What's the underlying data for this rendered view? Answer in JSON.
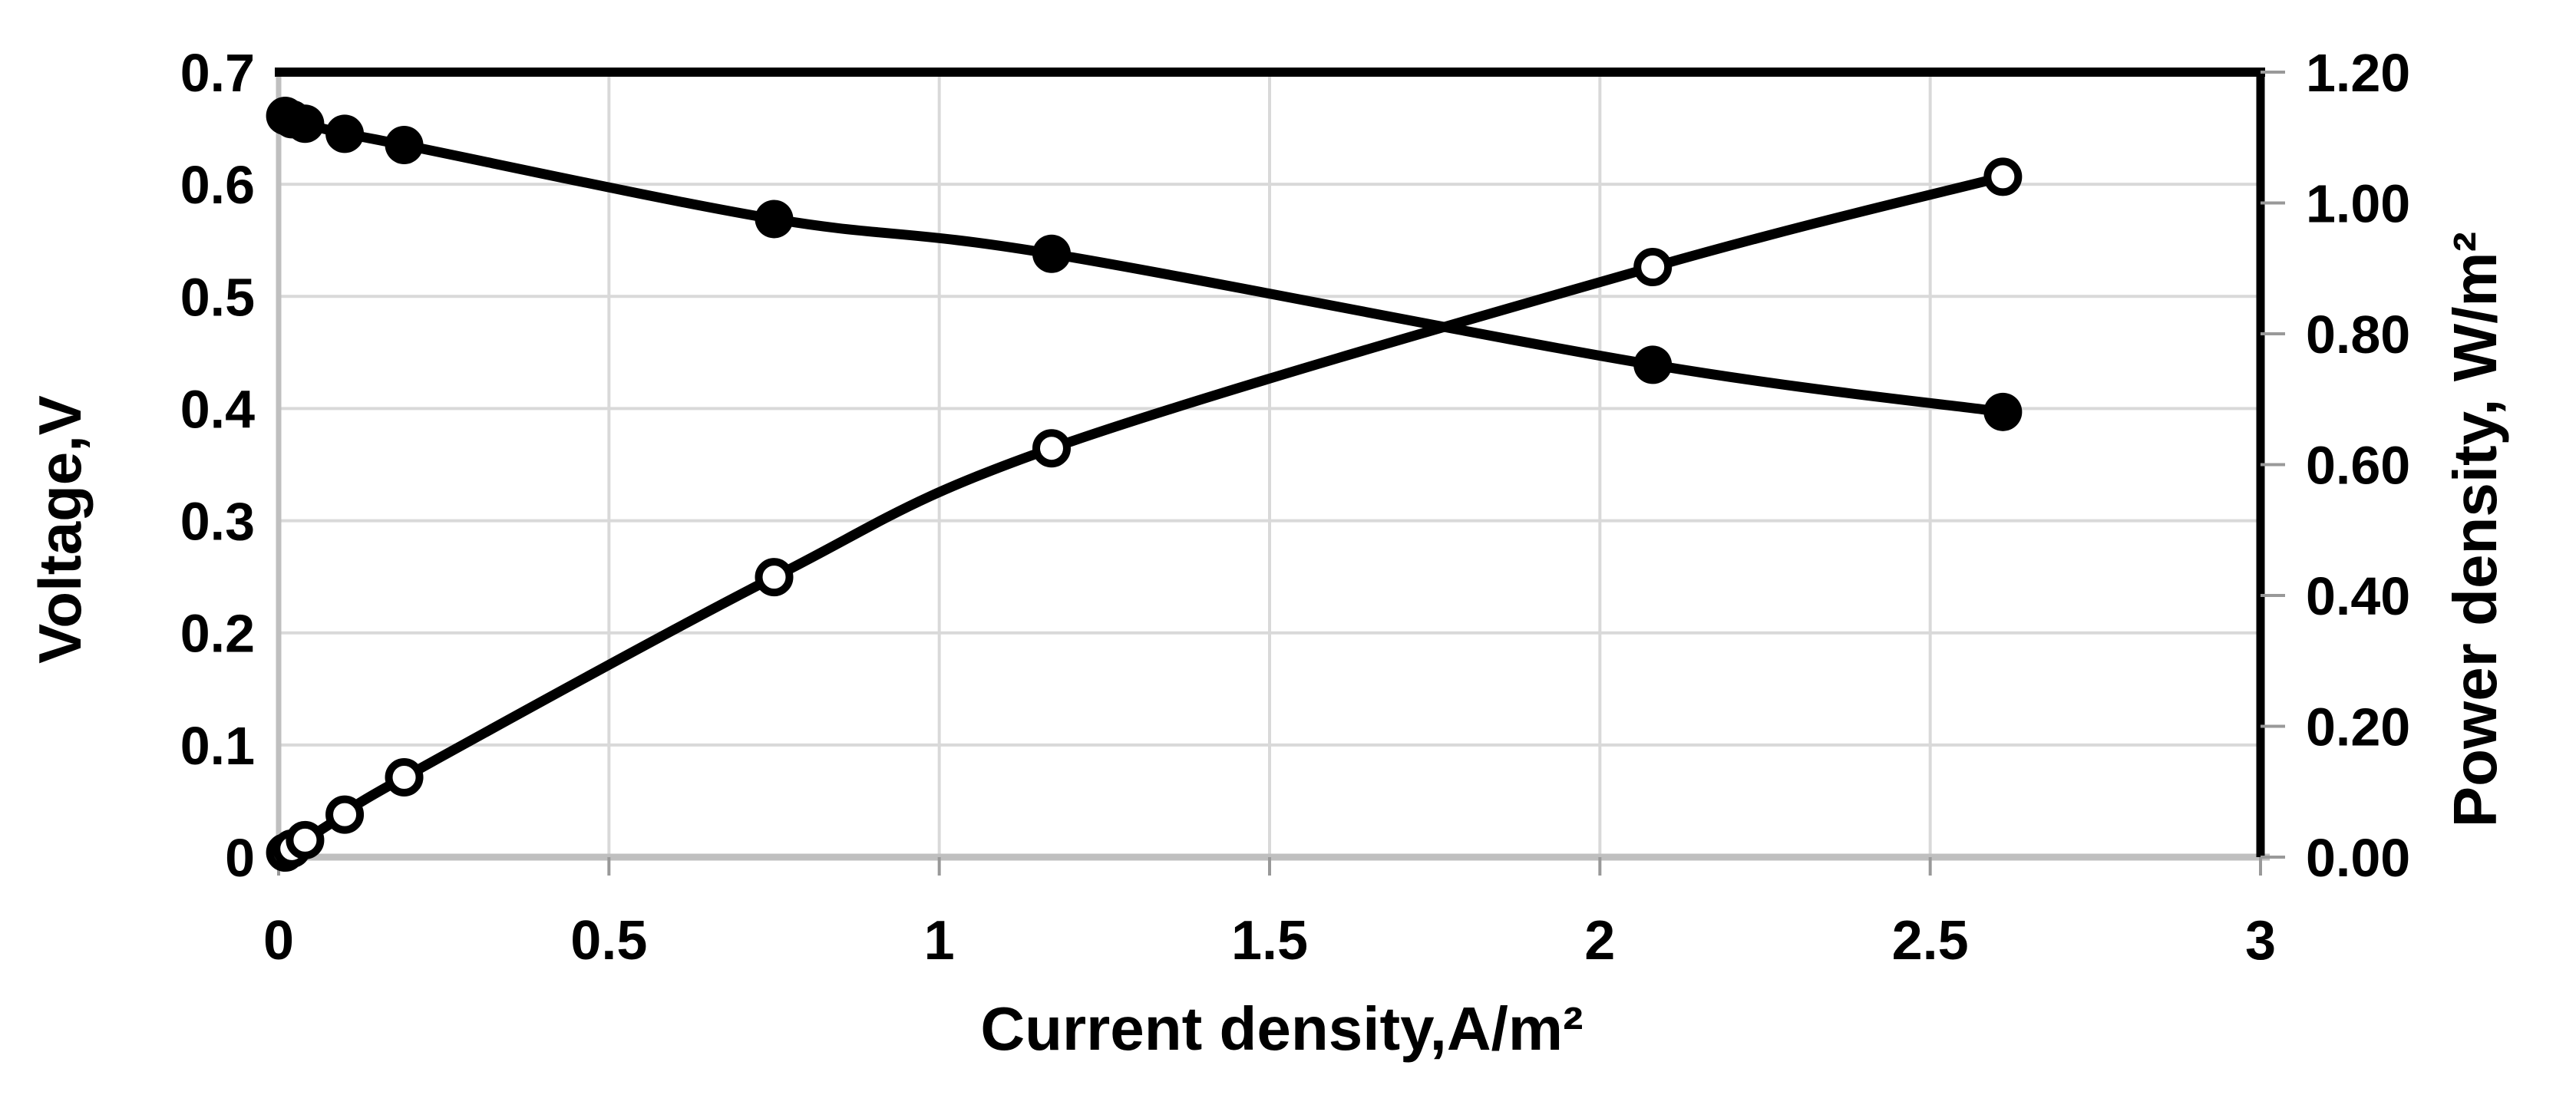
{
  "page": {
    "background": "#ffffff"
  },
  "chart_data": {
    "type": "line",
    "title": "",
    "legend": "none",
    "grid": true,
    "x": [
      0.01,
      0.02,
      0.04,
      0.1,
      0.19,
      0.75,
      1.17,
      2.08,
      2.61
    ],
    "series": [
      {
        "name": "Voltage",
        "axis": "left",
        "marker": "filled-circle",
        "color": "#000000",
        "values": [
          0.661,
          0.658,
          0.654,
          0.645,
          0.635,
          0.569,
          0.538,
          0.439,
          0.397
        ]
      },
      {
        "name": "Power density",
        "axis": "right",
        "marker": "open-circle",
        "color": "#000000",
        "values": [
          0.007,
          0.013,
          0.026,
          0.065,
          0.122,
          0.428,
          0.625,
          0.902,
          1.04
        ]
      }
    ],
    "x_axis": {
      "label": "Current density,A/m²",
      "range": [
        0,
        3
      ],
      "tick_values": [
        0,
        0.5,
        1,
        1.5,
        2,
        2.5,
        3
      ],
      "tick_labels": [
        "0",
        "0.5",
        "1",
        "1.5",
        "2",
        "2.5",
        "3"
      ]
    },
    "y_axis_left": {
      "label": "Voltage,V",
      "range": [
        0,
        0.7
      ],
      "tick_values": [
        0.7,
        0.6,
        0.5,
        0.4,
        0.3,
        0.2,
        0.1,
        0
      ],
      "tick_labels": [
        "0.7",
        "0.6",
        "0.5",
        "0.4",
        "0.3",
        "0.2",
        "0.1",
        "0"
      ]
    },
    "y_axis_right": {
      "label": "Power density, W/m²",
      "range": [
        0,
        1.2
      ],
      "tick_values": [
        1.2,
        1.0,
        0.8,
        0.6,
        0.4,
        0.2,
        0
      ],
      "tick_labels": [
        "1.20",
        "1.00",
        "0.80",
        "0.60",
        "0.40",
        "0.20",
        "0.00"
      ]
    },
    "colors": {
      "series": "#000000",
      "gridline": "#d9d9d9",
      "axis_gray": "#bfbfbf",
      "axis_black": "#000000",
      "tick_mark": "#999999",
      "background": "#ffffff"
    }
  }
}
